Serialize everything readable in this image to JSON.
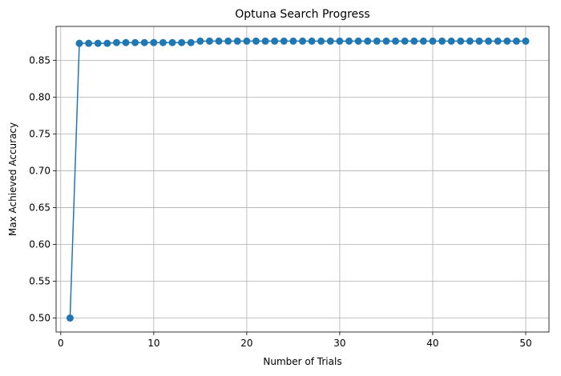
{
  "chart_data": {
    "type": "line",
    "title": "Optuna Search Progress",
    "xlabel": "Number of Trials",
    "ylabel": "Max Achieved Accuracy",
    "xlim": [
      -0.5,
      52.5
    ],
    "ylim": [
      0.481,
      0.896
    ],
    "xticks": [
      0,
      10,
      20,
      30,
      40,
      50
    ],
    "yticks": [
      0.5,
      0.55,
      0.6,
      0.65,
      0.7,
      0.75,
      0.8,
      0.85
    ],
    "grid": true,
    "marker": "circle",
    "series": [
      {
        "color": "#1f77b4",
        "x": [
          1,
          2,
          3,
          4,
          5,
          6,
          7,
          8,
          9,
          10,
          11,
          12,
          13,
          14,
          15,
          16,
          17,
          18,
          19,
          20,
          21,
          22,
          23,
          24,
          25,
          26,
          27,
          28,
          29,
          30,
          31,
          32,
          33,
          34,
          35,
          36,
          37,
          38,
          39,
          40,
          41,
          42,
          43,
          44,
          45,
          46,
          47,
          48,
          49,
          50
        ],
        "y": [
          0.5,
          0.873,
          0.873,
          0.873,
          0.873,
          0.874,
          0.874,
          0.874,
          0.874,
          0.874,
          0.874,
          0.874,
          0.874,
          0.874,
          0.876,
          0.876,
          0.876,
          0.876,
          0.876,
          0.876,
          0.876,
          0.876,
          0.876,
          0.876,
          0.876,
          0.876,
          0.876,
          0.876,
          0.876,
          0.876,
          0.876,
          0.876,
          0.876,
          0.876,
          0.876,
          0.876,
          0.876,
          0.876,
          0.876,
          0.876,
          0.876,
          0.876,
          0.876,
          0.876,
          0.876,
          0.876,
          0.876,
          0.876,
          0.876,
          0.876
        ]
      }
    ]
  }
}
